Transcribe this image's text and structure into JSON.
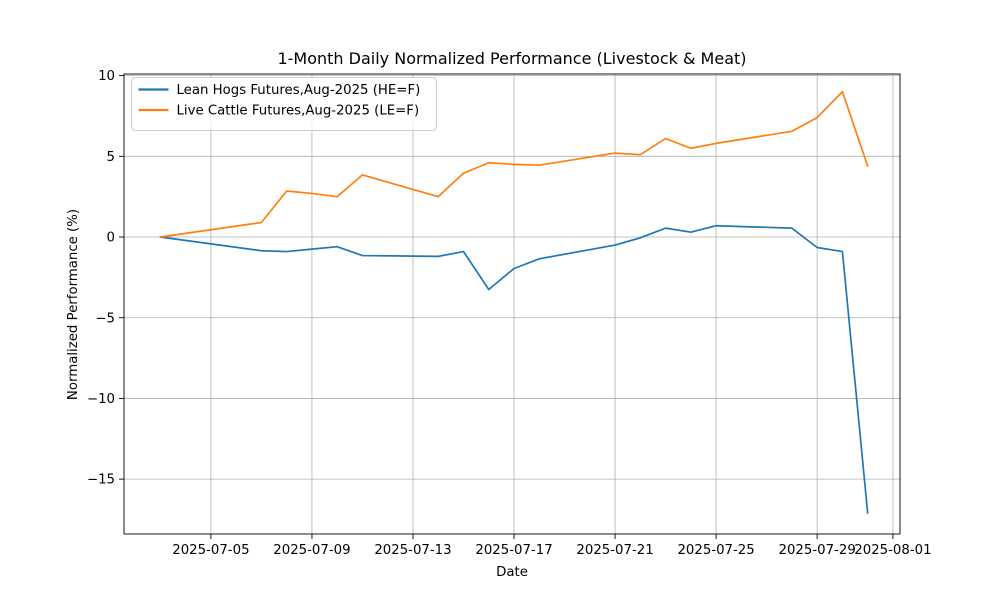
{
  "figure": {
    "background": "#ffffff"
  },
  "chart_data": {
    "type": "line",
    "title": "1-Month Daily Normalized Performance (Livestock & Meat)",
    "xlabel": "Date",
    "ylabel": "Normalized Performance (%)",
    "grid": true,
    "legend_position": "upper left",
    "grid_color": "#b0b0b0",
    "axis_color": "#000000",
    "x_dates": [
      "2025-07-03",
      "2025-07-07",
      "2025-07-08",
      "2025-07-09",
      "2025-07-10",
      "2025-07-11",
      "2025-07-14",
      "2025-07-15",
      "2025-07-16",
      "2025-07-17",
      "2025-07-18",
      "2025-07-21",
      "2025-07-22",
      "2025-07-23",
      "2025-07-24",
      "2025-07-25",
      "2025-07-28",
      "2025-07-29",
      "2025-07-30",
      "2025-07-31"
    ],
    "series": [
      {
        "name": "Lean Hogs Futures,Aug-2025 (HE=F)",
        "color": "#1f77b4",
        "values": [
          0.0,
          -0.85,
          -0.9,
          -0.75,
          -0.6,
          -1.15,
          -1.2,
          -0.9,
          -3.25,
          -1.95,
          -1.35,
          -0.5,
          -0.05,
          0.55,
          0.3,
          0.7,
          0.55,
          -0.65,
          -0.9,
          -17.1
        ]
      },
      {
        "name": "Live Cattle Futures,Aug-2025 (LE=F)",
        "color": "#ff7f0e",
        "values": [
          0.0,
          0.9,
          2.85,
          2.7,
          2.5,
          3.85,
          2.5,
          3.95,
          4.6,
          4.5,
          4.45,
          5.2,
          5.1,
          6.1,
          5.5,
          5.8,
          6.55,
          7.4,
          9.0,
          4.4
        ]
      }
    ],
    "x_tick_labels": [
      "2025-07-05",
      "2025-07-09",
      "2025-07-13",
      "2025-07-17",
      "2025-07-21",
      "2025-07-25",
      "2025-07-29",
      "2025-08-01"
    ],
    "y_ticks": [
      10,
      5,
      0,
      -5,
      -10,
      -15
    ],
    "ylim": [
      -18.4,
      10.1
    ],
    "xlim_days": [
      -1.44,
      29.28
    ]
  }
}
